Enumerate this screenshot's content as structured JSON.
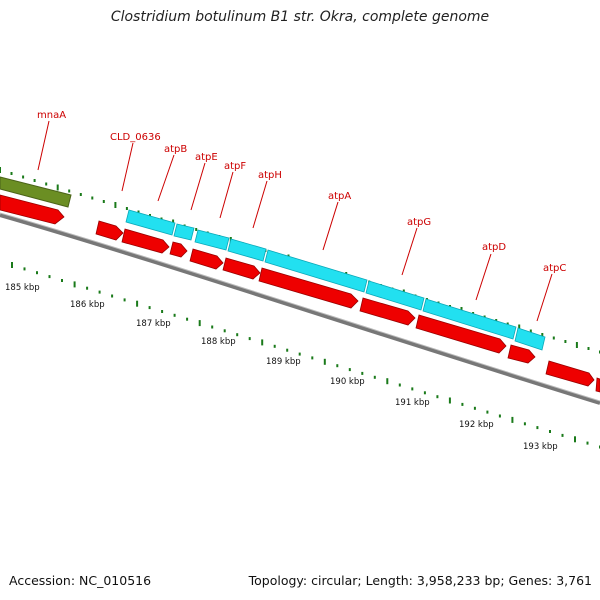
{
  "title": "Clostridium botulinum B1 str. Okra, complete genome",
  "footer": {
    "accession": "Accession: NC_010516",
    "stats": "Topology: circular; Length: 3,958,233 bp; Genes: 3,761"
  },
  "colors": {
    "cds": "#ee0000",
    "cds_dark": "#990000",
    "gene_cyan": "#22e0f0",
    "gene_olive": "#6b8e23",
    "backbone": "#777777",
    "gc_dots": "#1a7a1a",
    "label": "#cc0000"
  },
  "gene_labels": [
    {
      "name": "mnaA"
    },
    {
      "name": "CLD_0636"
    },
    {
      "name": "atpB"
    },
    {
      "name": "atpE"
    },
    {
      "name": "atpF"
    },
    {
      "name": "atpH"
    },
    {
      "name": "atpA"
    },
    {
      "name": "atpG"
    },
    {
      "name": "atpD"
    },
    {
      "name": "atpC"
    }
  ],
  "ticks": [
    "185 kbp",
    "186 kbp",
    "187 kbp",
    "188 kbp",
    "189 kbp",
    "190 kbp",
    "191 kbp",
    "192 kbp",
    "193 kbp"
  ]
}
